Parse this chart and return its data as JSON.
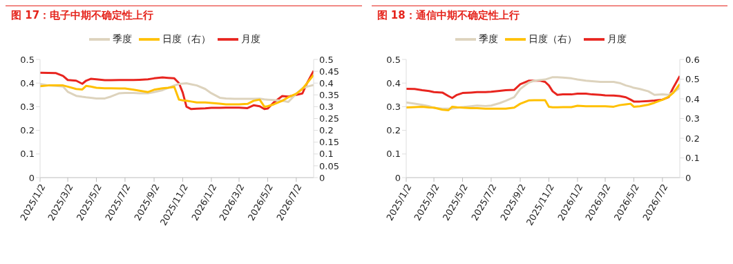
{
  "chart_data": [
    {
      "type": "line",
      "title": "图 17：电子中期不确定性上行",
      "legend": "top",
      "grid": false,
      "marker": "none",
      "line_style": "solid",
      "x": [
        "2025-01-02",
        "2025-01-20",
        "2025-02-05",
        "2025-02-20",
        "2025-03-02",
        "2025-03-20",
        "2025-04-02",
        "2025-04-10",
        "2025-04-20",
        "2025-05-02",
        "2025-05-20",
        "2025-06-02",
        "2025-06-20",
        "2025-07-02",
        "2025-07-20",
        "2025-08-02",
        "2025-08-20",
        "2025-09-02",
        "2025-09-20",
        "2025-10-02",
        "2025-10-15",
        "2025-10-25",
        "2025-11-02",
        "2025-11-10",
        "2025-11-20",
        "2025-12-02",
        "2025-12-20",
        "2026-01-02",
        "2026-01-20",
        "2026-02-02",
        "2026-02-20",
        "2026-03-02",
        "2026-03-20",
        "2026-04-02",
        "2026-04-15",
        "2026-04-25",
        "2026-05-02",
        "2026-05-15",
        "2026-06-02",
        "2026-06-15",
        "2026-07-02",
        "2026-07-15",
        "2026-07-25",
        "2026-08-08"
      ],
      "xlim": [
        "2025-01-02",
        "2026-08-08"
      ],
      "xticks": [
        {
          "value": "2025-01-02",
          "label": "2025/1/2"
        },
        {
          "value": "2025-03-02",
          "label": "2025/3/2"
        },
        {
          "value": "2025-05-02",
          "label": "2025/5/2"
        },
        {
          "value": "2025-07-02",
          "label": "2025/7/2"
        },
        {
          "value": "2025-09-02",
          "label": "2025/9/2"
        },
        {
          "value": "2025-11-02",
          "label": "2025/11/2"
        },
        {
          "value": "2026-01-02",
          "label": "2026/1/2"
        },
        {
          "value": "2026-03-02",
          "label": "2026/3/2"
        },
        {
          "value": "2026-05-02",
          "label": "2026/5/2"
        },
        {
          "value": "2026-07-02",
          "label": "2026/7/2"
        }
      ],
      "ylim": [
        0,
        0.5
      ],
      "yticks": [
        0,
        0.1,
        0.2,
        0.3,
        0.4,
        0.5
      ],
      "y2lim": [
        0,
        0.5
      ],
      "y2ticks": [
        0,
        0.05,
        0.1,
        0.15,
        0.2,
        0.25,
        0.3,
        0.35,
        0.4,
        0.45,
        0.5
      ],
      "series": [
        {
          "name": "月度",
          "color": "#e8251f",
          "values": [
            0.444,
            0.443,
            0.442,
            0.43,
            0.413,
            0.41,
            0.397,
            0.41,
            0.418,
            0.416,
            0.412,
            0.412,
            0.413,
            0.413,
            0.413,
            0.414,
            0.416,
            0.42,
            0.424,
            0.422,
            0.42,
            0.4,
            0.36,
            0.3,
            0.29,
            0.292,
            0.293,
            0.295,
            0.295,
            0.296,
            0.296,
            0.296,
            0.294,
            0.306,
            0.302,
            0.29,
            0.292,
            0.318,
            0.345,
            0.343,
            0.35,
            0.356,
            0.4,
            0.452
          ]
        },
        {
          "name": "季度",
          "color": "#ddd3bd",
          "values": [
            0.396,
            0.39,
            0.388,
            0.385,
            0.363,
            0.346,
            0.342,
            0.34,
            0.338,
            0.335,
            0.335,
            0.343,
            0.357,
            0.358,
            0.358,
            0.357,
            0.357,
            0.362,
            0.37,
            0.38,
            0.39,
            0.396,
            0.398,
            0.399,
            0.395,
            0.39,
            0.375,
            0.357,
            0.338,
            0.335,
            0.333,
            0.333,
            0.333,
            0.333,
            0.334,
            0.331,
            0.33,
            0.328,
            0.325,
            0.32,
            0.355,
            0.378,
            0.385,
            0.392
          ]
        },
        {
          "name": "日度（右）",
          "color": "#ffc000",
          "axis": "y2",
          "values": [
            0.387,
            0.39,
            0.39,
            0.39,
            0.385,
            0.375,
            0.373,
            0.388,
            0.385,
            0.38,
            0.378,
            0.378,
            0.377,
            0.377,
            0.372,
            0.368,
            0.362,
            0.372,
            0.378,
            0.38,
            0.384,
            0.33,
            0.327,
            0.325,
            0.322,
            0.318,
            0.318,
            0.316,
            0.313,
            0.31,
            0.31,
            0.31,
            0.312,
            0.325,
            0.33,
            0.3,
            0.302,
            0.31,
            0.325,
            0.34,
            0.355,
            0.375,
            0.4,
            0.435
          ]
        }
      ]
    },
    {
      "type": "line",
      "title": "图 18：通信中期不确定性上行",
      "legend": "top",
      "grid": false,
      "marker": "none",
      "line_style": "solid",
      "x": [
        "2025-01-02",
        "2025-01-20",
        "2025-02-05",
        "2025-02-20",
        "2025-03-02",
        "2025-03-20",
        "2025-04-02",
        "2025-04-10",
        "2025-04-20",
        "2025-05-02",
        "2025-05-20",
        "2025-06-02",
        "2025-06-20",
        "2025-07-02",
        "2025-07-20",
        "2025-08-02",
        "2025-08-20",
        "2025-09-02",
        "2025-09-20",
        "2025-10-02",
        "2025-10-15",
        "2025-10-25",
        "2025-11-02",
        "2025-11-10",
        "2025-11-20",
        "2025-12-02",
        "2025-12-20",
        "2026-01-02",
        "2026-01-20",
        "2026-02-02",
        "2026-02-20",
        "2026-03-02",
        "2026-03-20",
        "2026-04-02",
        "2026-04-15",
        "2026-04-25",
        "2026-05-02",
        "2026-05-15",
        "2026-06-02",
        "2026-06-15",
        "2026-07-02",
        "2026-07-15",
        "2026-07-25",
        "2026-08-08"
      ],
      "xlim": [
        "2025-01-02",
        "2026-08-08"
      ],
      "xticks": [
        {
          "value": "2025-01-02",
          "label": "2025/1/2"
        },
        {
          "value": "2025-03-02",
          "label": "2025/3/2"
        },
        {
          "value": "2025-05-02",
          "label": "2025/5/2"
        },
        {
          "value": "2025-07-02",
          "label": "2025/7/2"
        },
        {
          "value": "2025-09-02",
          "label": "2025/9/2"
        },
        {
          "value": "2025-11-02",
          "label": "2025/11/2"
        },
        {
          "value": "2026-01-02",
          "label": "2026/1/2"
        },
        {
          "value": "2026-03-02",
          "label": "2026/3/2"
        },
        {
          "value": "2026-05-02",
          "label": "2026/5/2"
        },
        {
          "value": "2026-07-02",
          "label": "2026/7/2"
        }
      ],
      "ylim": [
        0,
        0.5
      ],
      "yticks": [
        0,
        0.1,
        0.2,
        0.3,
        0.4,
        0.5
      ],
      "y2lim": [
        0,
        0.6
      ],
      "y2ticks": [
        0,
        0.1,
        0.2,
        0.3,
        0.4,
        0.5,
        0.6
      ],
      "series": [
        {
          "name": "月度",
          "color": "#e8251f",
          "values": [
            0.376,
            0.375,
            0.37,
            0.366,
            0.362,
            0.36,
            0.345,
            0.337,
            0.35,
            0.358,
            0.36,
            0.362,
            0.362,
            0.363,
            0.367,
            0.37,
            0.371,
            0.395,
            0.41,
            0.41,
            0.41,
            0.405,
            0.39,
            0.365,
            0.35,
            0.352,
            0.352,
            0.355,
            0.355,
            0.352,
            0.35,
            0.348,
            0.347,
            0.345,
            0.34,
            0.33,
            0.322,
            0.322,
            0.324,
            0.326,
            0.33,
            0.34,
            0.38,
            0.43
          ]
        },
        {
          "name": "季度",
          "color": "#ddd3bd",
          "values": [
            0.318,
            0.313,
            0.308,
            0.302,
            0.295,
            0.292,
            0.292,
            0.292,
            0.295,
            0.298,
            0.302,
            0.305,
            0.303,
            0.305,
            0.315,
            0.325,
            0.34,
            0.375,
            0.402,
            0.41,
            0.413,
            0.415,
            0.42,
            0.425,
            0.425,
            0.423,
            0.42,
            0.415,
            0.41,
            0.408,
            0.405,
            0.405,
            0.405,
            0.4,
            0.39,
            0.385,
            0.38,
            0.375,
            0.365,
            0.35,
            0.352,
            0.35,
            0.36,
            0.38
          ]
        },
        {
          "name": "日度（右）",
          "color": "#ffc000",
          "axis": "y2",
          "values": [
            0.356,
            0.358,
            0.36,
            0.356,
            0.355,
            0.345,
            0.342,
            0.36,
            0.357,
            0.355,
            0.353,
            0.353,
            0.35,
            0.35,
            0.35,
            0.35,
            0.355,
            0.375,
            0.392,
            0.393,
            0.393,
            0.393,
            0.36,
            0.357,
            0.357,
            0.358,
            0.358,
            0.365,
            0.362,
            0.362,
            0.362,
            0.362,
            0.36,
            0.368,
            0.372,
            0.375,
            0.36,
            0.362,
            0.37,
            0.38,
            0.395,
            0.41,
            0.43,
            0.475
          ]
        }
      ]
    }
  ]
}
